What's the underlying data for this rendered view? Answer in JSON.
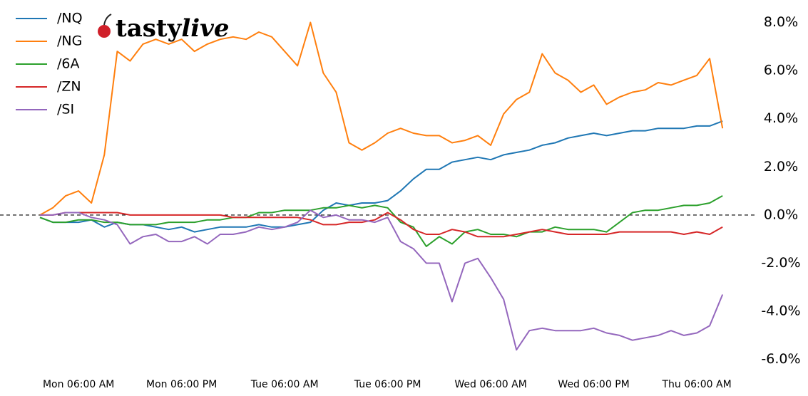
{
  "logo": {
    "prefix": "tasty",
    "suffix": "live"
  },
  "chart_data": {
    "type": "line",
    "categories": [
      null,
      null,
      null,
      "Mon 06:00 AM",
      null,
      null,
      null,
      null,
      null,
      null,
      null,
      "Mon 06:00 PM",
      null,
      null,
      null,
      null,
      null,
      null,
      null,
      "Tue 06:00 AM",
      null,
      null,
      null,
      null,
      null,
      null,
      null,
      "Tue 06:00 PM",
      null,
      null,
      null,
      null,
      null,
      null,
      null,
      "Wed 06:00 AM",
      null,
      null,
      null,
      null,
      null,
      null,
      null,
      "Wed 06:00 PM",
      null,
      null,
      null,
      null,
      null,
      null,
      null,
      "Thu 06:00 AM",
      null,
      null
    ],
    "series": [
      {
        "name": "/NQ",
        "color": "#1f77b4",
        "values": [
          -0.1,
          -0.3,
          -0.3,
          -0.3,
          -0.2,
          -0.5,
          -0.3,
          -0.4,
          -0.4,
          -0.5,
          -0.6,
          -0.5,
          -0.7,
          -0.6,
          -0.5,
          -0.5,
          -0.5,
          -0.4,
          -0.5,
          -0.5,
          -0.4,
          -0.3,
          0.2,
          0.5,
          0.4,
          0.5,
          0.5,
          0.6,
          1.0,
          1.5,
          1.9,
          1.9,
          2.2,
          2.3,
          2.4,
          2.3,
          2.5,
          2.6,
          2.7,
          2.9,
          3.0,
          3.2,
          3.3,
          3.4,
          3.3,
          3.4,
          3.5,
          3.5,
          3.6,
          3.6,
          3.6,
          3.7,
          3.7,
          3.9
        ]
      },
      {
        "name": "/NG",
        "color": "#ff7f0e",
        "values": [
          0.0,
          0.3,
          0.8,
          1.0,
          0.5,
          2.5,
          6.8,
          6.4,
          7.1,
          7.3,
          7.1,
          7.3,
          6.8,
          7.1,
          7.3,
          7.4,
          7.3,
          7.6,
          7.4,
          6.8,
          6.2,
          8.0,
          5.9,
          5.1,
          3.0,
          2.7,
          3.0,
          3.4,
          3.6,
          3.4,
          3.3,
          3.3,
          3.0,
          3.1,
          3.3,
          2.9,
          4.2,
          4.8,
          5.1,
          6.7,
          5.9,
          5.6,
          5.1,
          5.4,
          4.6,
          4.9,
          5.1,
          5.2,
          5.5,
          5.4,
          5.6,
          5.8,
          6.5,
          3.6
        ]
      },
      {
        "name": "/6A",
        "color": "#2ca02c",
        "values": [
          -0.1,
          -0.3,
          -0.3,
          -0.2,
          -0.2,
          -0.3,
          -0.3,
          -0.4,
          -0.4,
          -0.4,
          -0.3,
          -0.3,
          -0.3,
          -0.2,
          -0.2,
          -0.1,
          -0.1,
          0.1,
          0.1,
          0.2,
          0.2,
          0.2,
          0.3,
          0.3,
          0.4,
          0.3,
          0.4,
          0.3,
          -0.3,
          -0.5,
          -1.3,
          -0.9,
          -1.2,
          -0.7,
          -0.6,
          -0.8,
          -0.8,
          -0.9,
          -0.7,
          -0.7,
          -0.5,
          -0.6,
          -0.6,
          -0.6,
          -0.7,
          -0.3,
          0.1,
          0.2,
          0.2,
          0.3,
          0.4,
          0.4,
          0.5,
          0.8
        ]
      },
      {
        "name": "/ZN",
        "color": "#d62728",
        "values": [
          0,
          0,
          0.1,
          0.1,
          0.1,
          0.1,
          0.1,
          0,
          0,
          0,
          0,
          0,
          0,
          0,
          0,
          -0.1,
          -0.1,
          -0.1,
          -0.1,
          -0.1,
          -0.1,
          -0.2,
          -0.4,
          -0.4,
          -0.3,
          -0.3,
          -0.2,
          0.1,
          -0.2,
          -0.6,
          -0.8,
          -0.8,
          -0.6,
          -0.7,
          -0.9,
          -0.9,
          -0.9,
          -0.8,
          -0.7,
          -0.6,
          -0.7,
          -0.8,
          -0.8,
          -0.8,
          -0.8,
          -0.7,
          -0.7,
          -0.7,
          -0.7,
          -0.7,
          -0.8,
          -0.7,
          -0.8,
          -0.5
        ]
      },
      {
        "name": "/SI",
        "color": "#9467bd",
        "values": [
          0,
          0,
          0.1,
          0.1,
          -0.1,
          -0.2,
          -0.4,
          -1.2,
          -0.9,
          -0.8,
          -1.1,
          -1.1,
          -0.9,
          -1.2,
          -0.8,
          -0.8,
          -0.7,
          -0.5,
          -0.6,
          -0.5,
          -0.3,
          0.2,
          -0.1,
          0,
          -0.2,
          -0.2,
          -0.3,
          -0.1,
          -1.1,
          -1.4,
          -2.0,
          -2.0,
          -3.6,
          -2.0,
          -1.8,
          -2.6,
          -3.5,
          -5.6,
          -4.8,
          -4.7,
          -4.8,
          -4.8,
          -4.8,
          -4.7,
          -4.9,
          -5.0,
          -5.2,
          -5.1,
          -5.0,
          -4.8,
          -5.0,
          -4.9,
          -4.6,
          -3.3
        ]
      }
    ],
    "ylim": [
      -6.6,
      8.4
    ],
    "yticks": [
      {
        "value": -6,
        "label": "-6.0%"
      },
      {
        "value": -4,
        "label": "-4.0%"
      },
      {
        "value": -2,
        "label": "-2.0%"
      },
      {
        "value": 0,
        "label": "0.0%"
      },
      {
        "value": 2,
        "label": "2.0%"
      },
      {
        "value": 4,
        "label": "4.0%"
      },
      {
        "value": 6,
        "label": "6.0%"
      },
      {
        "value": 8,
        "label": "8.0%"
      }
    ],
    "hline": 0,
    "legend": "upper left"
  }
}
